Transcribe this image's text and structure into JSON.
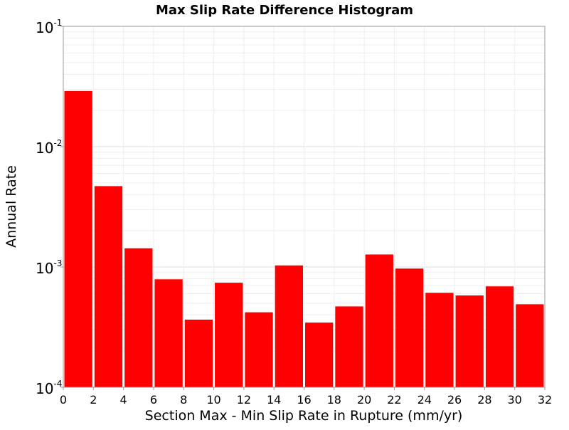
{
  "chart_data": {
    "type": "bar",
    "title": "Max Slip Rate Difference Histogram",
    "xlabel": "Section Max - Min Slip Rate in Rupture (mm/yr)",
    "ylabel": "Annual Rate",
    "xlim": [
      0,
      32
    ],
    "ylim": [
      0.0001,
      0.1
    ],
    "yscale": "log",
    "bar_color": "#ff0000",
    "grid": true,
    "x_ticks": [
      "0",
      "2",
      "4",
      "6",
      "8",
      "10",
      "12",
      "14",
      "16",
      "18",
      "20",
      "22",
      "24",
      "26",
      "28",
      "30",
      "32"
    ],
    "y_ticks": [
      {
        "value": 0.1,
        "base": "10",
        "exp": "-1"
      },
      {
        "value": 0.01,
        "base": "10",
        "exp": "-2"
      },
      {
        "value": 0.001,
        "base": "10",
        "exp": "-3"
      },
      {
        "value": 0.0001,
        "base": "10",
        "exp": "-4"
      }
    ],
    "bin_width": 2,
    "bins": [
      {
        "x": 1,
        "value": 0.029
      },
      {
        "x": 3,
        "value": 0.0047
      },
      {
        "x": 5,
        "value": 0.00143
      },
      {
        "x": 7,
        "value": 0.00079
      },
      {
        "x": 9,
        "value": 0.000365
      },
      {
        "x": 11,
        "value": 0.00074
      },
      {
        "x": 13,
        "value": 0.00042
      },
      {
        "x": 15,
        "value": 0.00103
      },
      {
        "x": 17,
        "value": 0.000345
      },
      {
        "x": 19,
        "value": 0.00047
      },
      {
        "x": 21,
        "value": 0.00127
      },
      {
        "x": 23,
        "value": 0.00097
      },
      {
        "x": 25,
        "value": 0.00061
      },
      {
        "x": 27,
        "value": 0.00058
      },
      {
        "x": 29,
        "value": 0.00069
      },
      {
        "x": 31,
        "value": 0.00049
      }
    ]
  }
}
